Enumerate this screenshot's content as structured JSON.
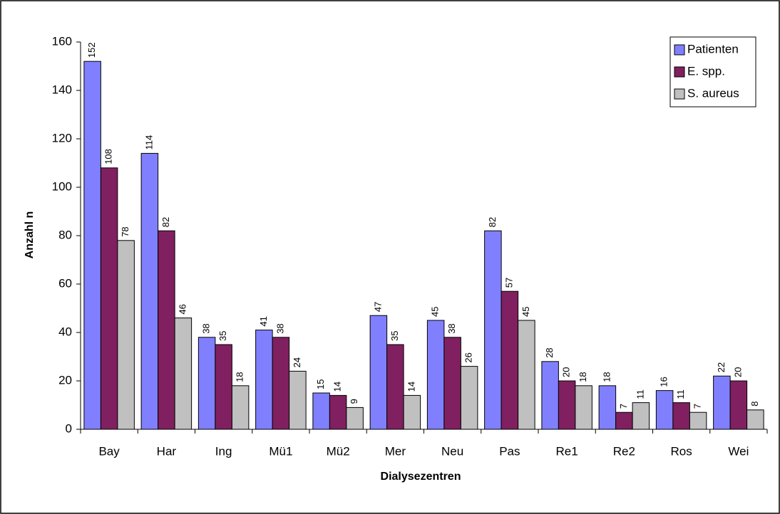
{
  "chart_data": {
    "type": "bar",
    "xlabel": "Dialysezentren",
    "ylabel": "Anzahl n",
    "categories": [
      "Bay",
      "Har",
      "Ing",
      "Mü1",
      "Mü2",
      "Mer",
      "Neu",
      "Pas",
      "Re1",
      "Re2",
      "Ros",
      "Wei"
    ],
    "series": [
      {
        "name": "Patienten",
        "color": "#8080ff",
        "values": [
          152,
          114,
          38,
          41,
          15,
          47,
          45,
          82,
          28,
          18,
          16,
          22
        ]
      },
      {
        "name": "E. spp.",
        "color": "#802060",
        "values": [
          108,
          82,
          35,
          38,
          14,
          35,
          38,
          57,
          20,
          7,
          11,
          20
        ]
      },
      {
        "name": "S. aureus",
        "color": "#c0c0c0",
        "values": [
          78,
          46,
          18,
          24,
          9,
          14,
          26,
          45,
          18,
          11,
          7,
          8
        ]
      }
    ],
    "ylim": [
      0,
      160
    ],
    "yticks": [
      0,
      20,
      40,
      60,
      80,
      100,
      120,
      140,
      160
    ],
    "legend": "top-right",
    "data_labels": true
  }
}
